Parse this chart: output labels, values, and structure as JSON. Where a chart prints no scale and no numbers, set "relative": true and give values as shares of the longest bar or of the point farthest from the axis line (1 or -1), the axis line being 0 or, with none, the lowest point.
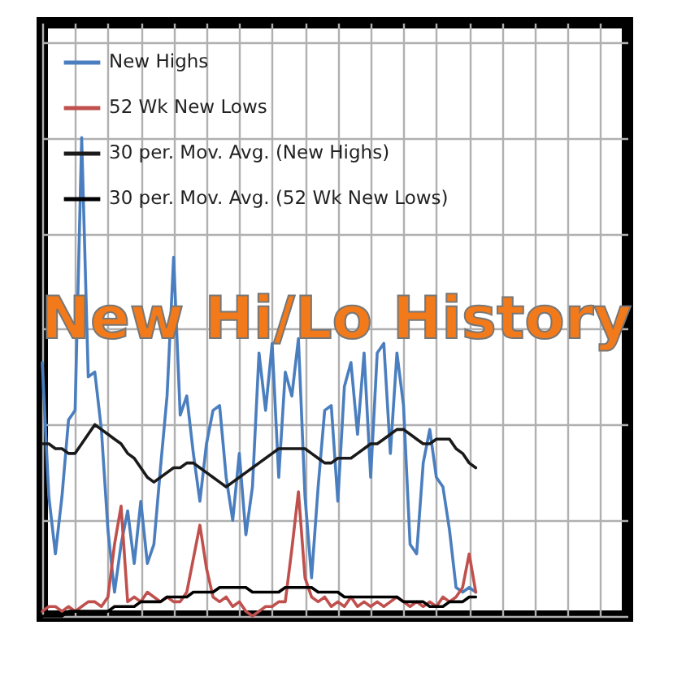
{
  "chart_data": {
    "type": "line",
    "title": "New Hi/Lo History",
    "relative": true,
    "grid": true,
    "legend": "top left",
    "tick_labels": false,
    "categories": [
      null,
      null,
      null,
      null,
      null,
      null,
      null,
      null,
      null,
      null,
      null,
      null,
      null,
      null,
      null,
      null,
      null,
      null,
      null,
      null,
      null,
      null,
      null,
      null,
      null,
      null,
      null,
      null,
      null,
      null,
      null,
      null,
      null,
      null,
      null,
      null,
      null,
      null,
      null,
      null,
      null,
      null,
      null,
      null,
      null,
      null,
      null,
      null,
      null,
      null,
      null,
      null,
      null,
      null,
      null,
      null,
      null,
      null,
      null,
      null,
      null,
      null,
      null,
      null,
      null,
      null,
      null
    ],
    "series": [
      {
        "name": "New Highs",
        "color": "#4a7ebf",
        "values": [
          0.53,
          0.25,
          0.13,
          0.25,
          0.41,
          0.43,
          1,
          0.5,
          0.51,
          0.39,
          0.18,
          0.05,
          0.15,
          0.22,
          0.11,
          0.24,
          0.11,
          0.15,
          0.31,
          0.46,
          0.75,
          0.42,
          0.46,
          0.34,
          0.24,
          0.36,
          0.43,
          0.44,
          0.29,
          0.2,
          0.34,
          0.17,
          0.27,
          0.55,
          0.43,
          0.57,
          0.29,
          0.51,
          0.46,
          0.58,
          0.25,
          0.08,
          0.27,
          0.43,
          0.44,
          0.24,
          0.48,
          0.53,
          0.38,
          0.55,
          0.29,
          0.55,
          0.57,
          0.34,
          0.55,
          0.44,
          0.15,
          0.13,
          0.32,
          0.39,
          0.29,
          0.27,
          0.18,
          0.06,
          0.05,
          0.06,
          0.05
        ]
      },
      {
        "name": "52 Wk New Lows",
        "color": "#c0504d",
        "values": [
          0.01,
          0.02,
          0.02,
          0.01,
          0.02,
          0.01,
          0.02,
          0.03,
          0.03,
          0.02,
          0.04,
          0.15,
          0.23,
          0.03,
          0.04,
          0.03,
          0.05,
          0.04,
          0.03,
          0.04,
          0.03,
          0.03,
          0.05,
          0.12,
          0.19,
          0.1,
          0.04,
          0.03,
          0.04,
          0.02,
          0.03,
          0.01,
          0,
          0.01,
          0.02,
          0.02,
          0.03,
          0.03,
          0.14,
          0.26,
          0.08,
          0.04,
          0.03,
          0.04,
          0.02,
          0.03,
          0.02,
          0.04,
          0.02,
          0.03,
          0.02,
          0.03,
          0.02,
          0.03,
          0.04,
          0.03,
          0.02,
          0.03,
          0.02,
          0.03,
          0.02,
          0.04,
          0.03,
          0.04,
          0.06,
          0.13,
          0.05
        ]
      },
      {
        "name": "30 per. Mov. Avg. (New Highs)",
        "color": "#1a1a1a",
        "values": [
          0.36,
          0.36,
          0.35,
          0.35,
          0.34,
          0.34,
          0.36,
          0.38,
          0.4,
          0.39,
          0.38,
          0.37,
          0.36,
          0.34,
          0.33,
          0.31,
          0.29,
          0.28,
          0.29,
          0.3,
          0.31,
          0.31,
          0.32,
          0.32,
          0.31,
          0.3,
          0.29,
          0.28,
          0.27,
          0.28,
          0.29,
          0.3,
          0.31,
          0.32,
          0.33,
          0.34,
          0.35,
          0.35,
          0.35,
          0.35,
          0.35,
          0.34,
          0.33,
          0.32,
          0.32,
          0.33,
          0.33,
          0.33,
          0.34,
          0.35,
          0.36,
          0.36,
          0.37,
          0.38,
          0.39,
          0.39,
          0.38,
          0.37,
          0.36,
          0.36,
          0.37,
          0.37,
          0.37,
          0.35,
          0.34,
          0.32,
          0.31
        ]
      },
      {
        "name": "30 per. Mov. Avg. (52 Wk New Lows)",
        "color": "#000000",
        "values": [
          0,
          0,
          0,
          0,
          0.01,
          0.01,
          0.01,
          0.01,
          0.01,
          0.01,
          0.01,
          0.02,
          0.02,
          0.02,
          0.02,
          0.03,
          0.03,
          0.03,
          0.03,
          0.04,
          0.04,
          0.04,
          0.04,
          0.05,
          0.05,
          0.05,
          0.05,
          0.06,
          0.06,
          0.06,
          0.06,
          0.06,
          0.05,
          0.05,
          0.05,
          0.05,
          0.05,
          0.06,
          0.06,
          0.06,
          0.06,
          0.06,
          0.05,
          0.05,
          0.05,
          0.05,
          0.04,
          0.04,
          0.04,
          0.04,
          0.04,
          0.04,
          0.04,
          0.04,
          0.04,
          0.03,
          0.03,
          0.03,
          0.03,
          0.02,
          0.02,
          0.02,
          0.03,
          0.03,
          0.03,
          0.04,
          0.04
        ]
      }
    ]
  }
}
